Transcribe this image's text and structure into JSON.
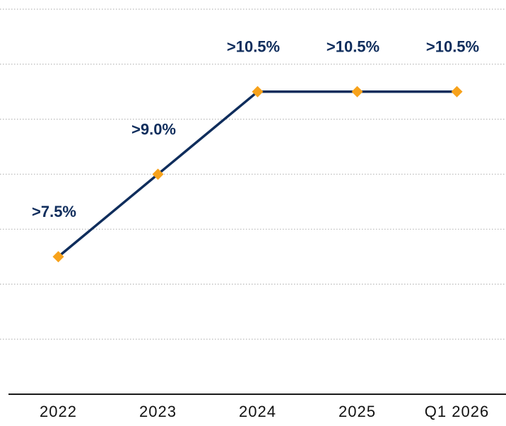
{
  "chart_data": {
    "type": "line",
    "categories": [
      "2022",
      "2023",
      "2024",
      "2025",
      "Q1 2026"
    ],
    "series": [
      {
        "color": "#0f2d5c",
        "marker_color": "#f7a21b",
        "values": [
          7.5,
          9.0,
          10.5,
          10.5,
          10.5
        ],
        "value_labels": [
          ">7.5%",
          ">9.0%",
          ">10.5%",
          ">10.5%",
          ">10.5%"
        ]
      }
    ],
    "ylim": [
      5,
      12
    ],
    "yticks": [
      6,
      7,
      8,
      9,
      10,
      11,
      12
    ],
    "grid": true
  }
}
